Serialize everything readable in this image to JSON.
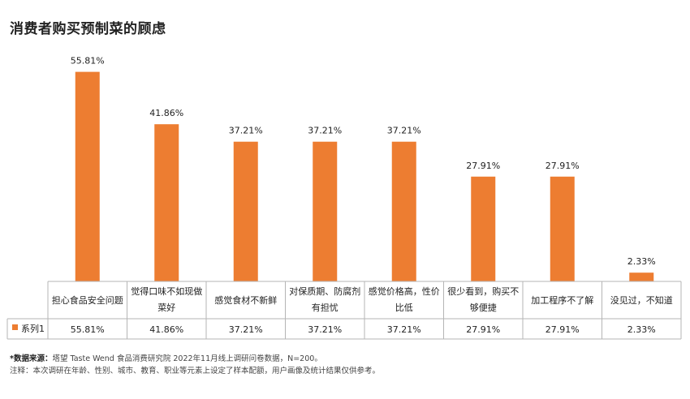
{
  "title": "消费者购买预制菜的顾虑",
  "chart_data": {
    "type": "bar",
    "title": "消费者购买预制菜的顾虑",
    "categories": [
      [
        "担心食品安全问题"
      ],
      [
        "觉得口味不如现做",
        "菜好"
      ],
      [
        "感觉食材不新鲜"
      ],
      [
        "对保质期、防腐剂",
        "有担忧"
      ],
      [
        "感觉价格高，性价",
        "比低"
      ],
      [
        "很少看到，购买不",
        "够便捷"
      ],
      [
        "加工程序不了解"
      ],
      [
        "没见过，不知道"
      ]
    ],
    "series": [
      {
        "name": "系列1",
        "values": [
          55.81,
          41.86,
          37.21,
          37.21,
          37.21,
          27.91,
          27.91,
          2.33
        ],
        "labels": [
          "55.81%",
          "41.86%",
          "37.21%",
          "37.21%",
          "37.21%",
          "27.91%",
          "27.91%",
          "2.33%"
        ]
      }
    ],
    "ylim": [
      0,
      60
    ],
    "color": "#ED7D31",
    "data_table": true,
    "legend_key": "系列1"
  },
  "footnote": {
    "source_label": "*数据来源：",
    "source_text": "塔望 Taste Wend 食品消费研究院 2022年11月线上调研问卷数据，N=200。",
    "note_text": "注释：本次调研在年龄、性别、城市、教育、职业等元素上设定了样本配额，用户画像及统计结果仅供参考。"
  }
}
